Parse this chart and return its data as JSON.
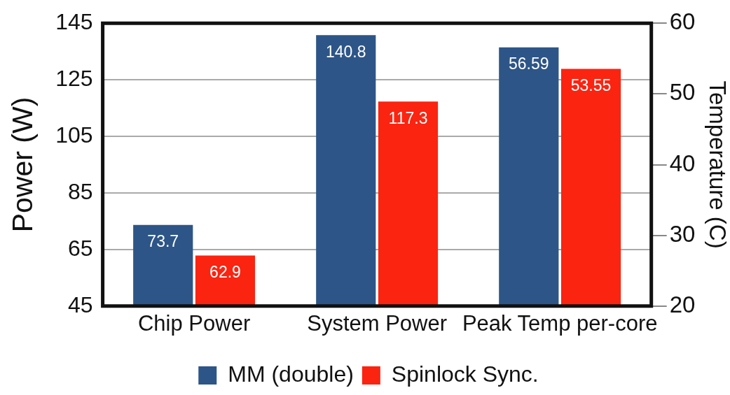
{
  "chart_data": {
    "type": "bar",
    "categories": [
      "Chip Power",
      "System Power",
      "Peak Temp per-core"
    ],
    "series": [
      {
        "name": "MM (double)",
        "color": "#2d5587",
        "values": [
          73.7,
          140.8,
          null
        ]
      },
      {
        "name": "Spinlock Sync.",
        "color": "#fa2411",
        "values": [
          62.9,
          117.3,
          null
        ]
      },
      {
        "color": "#2d5587",
        "values": [
          null,
          null,
          56.59
        ],
        "axis": "y2"
      },
      {
        "color": "#fa2411",
        "values": [
          null,
          null,
          53.55
        ],
        "axis": "y2"
      }
    ],
    "ylabel": "Power (W)",
    "y2label": "Temperature (C)",
    "ylim": [
      45,
      145
    ],
    "yticks": [
      45,
      65,
      85,
      105,
      125,
      145
    ],
    "y2lim": [
      20,
      60
    ],
    "y2ticks": [
      20,
      30,
      40,
      50,
      60
    ],
    "grid": "y",
    "legend": "bottom",
    "data_labels": true
  }
}
